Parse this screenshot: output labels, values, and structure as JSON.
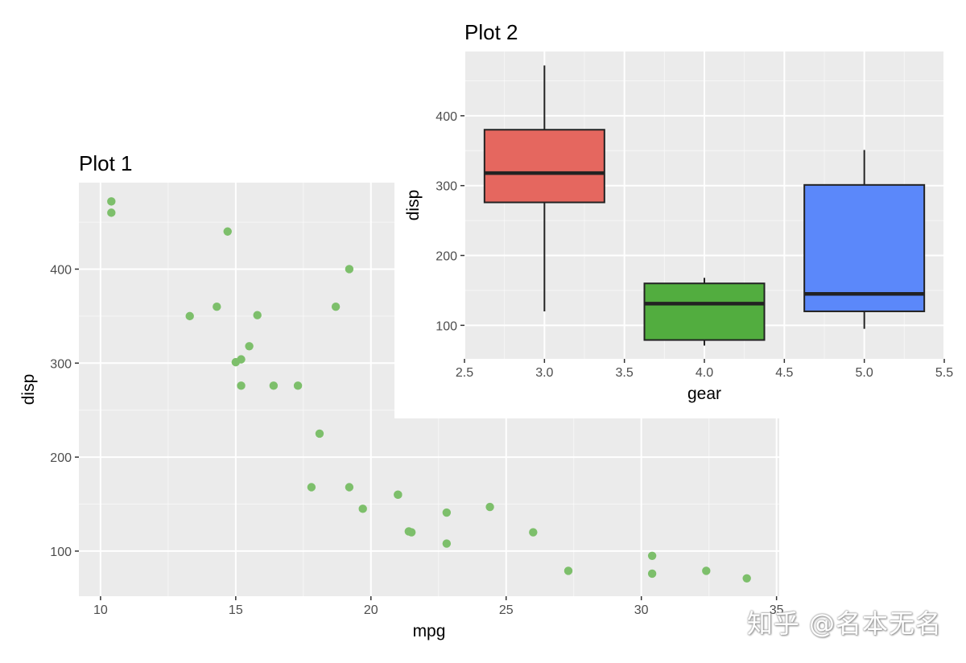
{
  "watermark": "知乎 @名本无名",
  "chart_data": [
    {
      "type": "scatter",
      "title": "Plot 1",
      "xlabel": "mpg",
      "ylabel": "disp",
      "xlim": [
        9.2,
        35.1
      ],
      "ylim": [
        52,
        492
      ],
      "xticks": [
        10,
        15,
        20,
        25,
        30,
        35
      ],
      "yticks": [
        100,
        200,
        300,
        400
      ],
      "grid": true,
      "point_color": "#7dbf6b",
      "points": [
        {
          "x": 10.4,
          "y": 472
        },
        {
          "x": 10.4,
          "y": 460
        },
        {
          "x": 14.7,
          "y": 440
        },
        {
          "x": 13.3,
          "y": 350
        },
        {
          "x": 14.3,
          "y": 360
        },
        {
          "x": 15.8,
          "y": 351
        },
        {
          "x": 19.2,
          "y": 400
        },
        {
          "x": 18.7,
          "y": 360
        },
        {
          "x": 15.5,
          "y": 318
        },
        {
          "x": 15.0,
          "y": 301
        },
        {
          "x": 15.2,
          "y": 304
        },
        {
          "x": 15.2,
          "y": 276
        },
        {
          "x": 16.4,
          "y": 276
        },
        {
          "x": 17.3,
          "y": 276
        },
        {
          "x": 18.1,
          "y": 225
        },
        {
          "x": 17.8,
          "y": 168
        },
        {
          "x": 19.2,
          "y": 168
        },
        {
          "x": 21.0,
          "y": 160
        },
        {
          "x": 21.0,
          "y": 160
        },
        {
          "x": 19.7,
          "y": 145
        },
        {
          "x": 22.8,
          "y": 141
        },
        {
          "x": 24.4,
          "y": 147
        },
        {
          "x": 21.4,
          "y": 121
        },
        {
          "x": 21.5,
          "y": 120
        },
        {
          "x": 26.0,
          "y": 120
        },
        {
          "x": 22.8,
          "y": 108
        },
        {
          "x": 27.3,
          "y": 79
        },
        {
          "x": 30.4,
          "y": 95
        },
        {
          "x": 30.4,
          "y": 76
        },
        {
          "x": 32.4,
          "y": 79
        },
        {
          "x": 33.9,
          "y": 71
        }
      ]
    },
    {
      "type": "box",
      "title": "Plot 2",
      "xlabel": "gear",
      "ylabel": "disp",
      "xlim": [
        2.5,
        5.5
      ],
      "ylim": [
        52,
        492
      ],
      "xticks": [
        2.5,
        3.0,
        3.5,
        4.0,
        4.5,
        5.0,
        5.5
      ],
      "xtick_labels": [
        "2.5",
        "3.0",
        "3.5",
        "4.0",
        "4.5",
        "5.0",
        "5.5"
      ],
      "yticks": [
        100,
        200,
        300,
        400
      ],
      "grid": true,
      "boxes": [
        {
          "x": 3,
          "min": 120,
          "q1": 276,
          "median": 318,
          "q3": 380,
          "max": 472,
          "color": "#e5675f"
        },
        {
          "x": 4,
          "min": 71,
          "q1": 79,
          "median": 131,
          "q3": 160,
          "max": 168,
          "color": "#52ad3f"
        },
        {
          "x": 5,
          "min": 95,
          "q1": 120,
          "median": 145,
          "q3": 301,
          "max": 351,
          "color": "#5b88fa"
        }
      ]
    }
  ]
}
